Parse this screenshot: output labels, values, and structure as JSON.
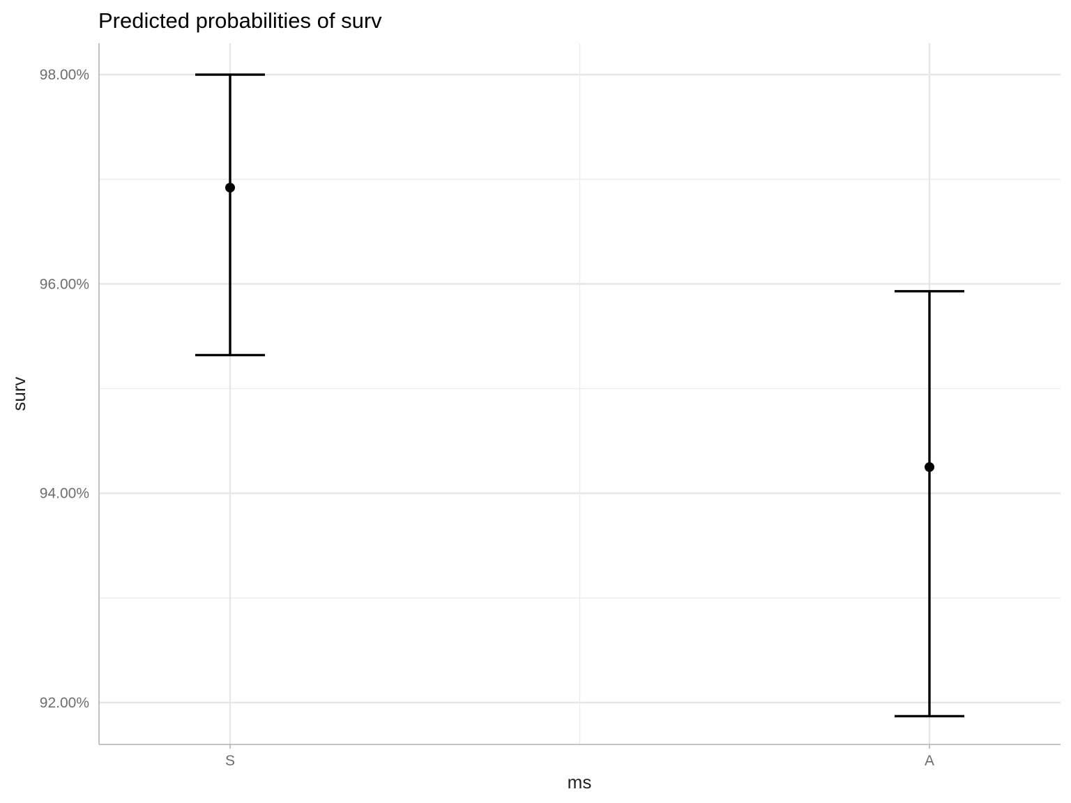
{
  "chart_data": {
    "type": "scatter",
    "title": "Predicted probabilities of surv",
    "xlabel": "ms",
    "ylabel": "surv",
    "categories": [
      "S",
      "A"
    ],
    "points": [
      {
        "category": "S",
        "estimate": 96.92,
        "lower": 95.32,
        "upper": 98.0
      },
      {
        "category": "A",
        "estimate": 94.25,
        "lower": 91.87,
        "upper": 95.93
      }
    ],
    "ylim": [
      91.6,
      98.3
    ],
    "yticks": [
      {
        "value": 92,
        "label": "92.00%"
      },
      {
        "value": 94,
        "label": "94.00%"
      },
      {
        "value": 96,
        "label": "96.00%"
      },
      {
        "value": 98,
        "label": "98.00%"
      }
    ],
    "y_minor_ticks": [
      93,
      95,
      97
    ],
    "grid": true,
    "legend": "none"
  }
}
